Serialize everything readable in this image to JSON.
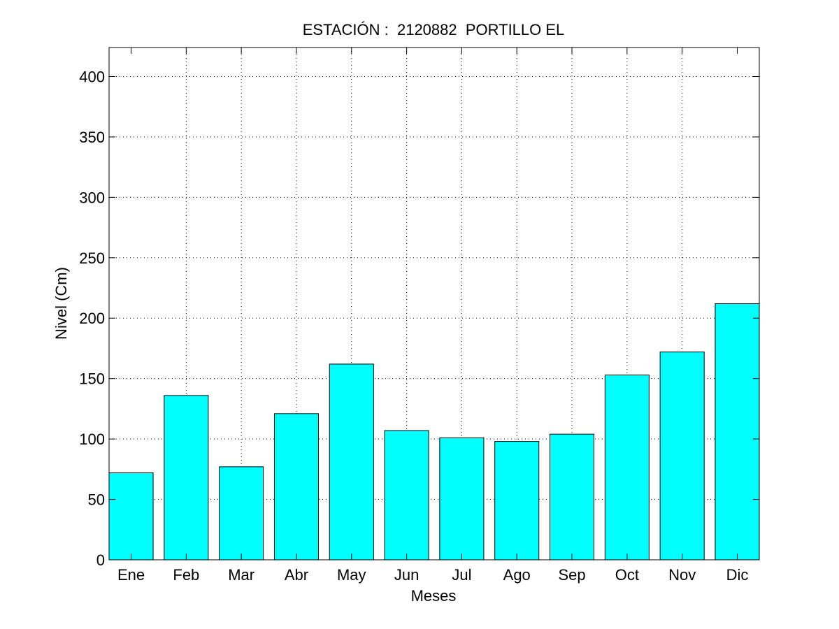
{
  "chart_data": {
    "type": "bar",
    "title": "ESTACIÓN :  2120882  PORTILLO EL",
    "xlabel": "Meses",
    "ylabel": "Nivel (Cm)",
    "categories": [
      "Ene",
      "Feb",
      "Mar",
      "Abr",
      "May",
      "Jun",
      "Jul",
      "Ago",
      "Sep",
      "Oct",
      "Nov",
      "Dic"
    ],
    "values": [
      72,
      136,
      77,
      121,
      162,
      107,
      101,
      98,
      104,
      153,
      172,
      212
    ],
    "ylim": [
      0,
      424
    ],
    "yticks": [
      0,
      50,
      100,
      150,
      200,
      250,
      300,
      350,
      400
    ],
    "grid": true,
    "bar_color": "#00ffff",
    "edge_color": "#000000"
  }
}
